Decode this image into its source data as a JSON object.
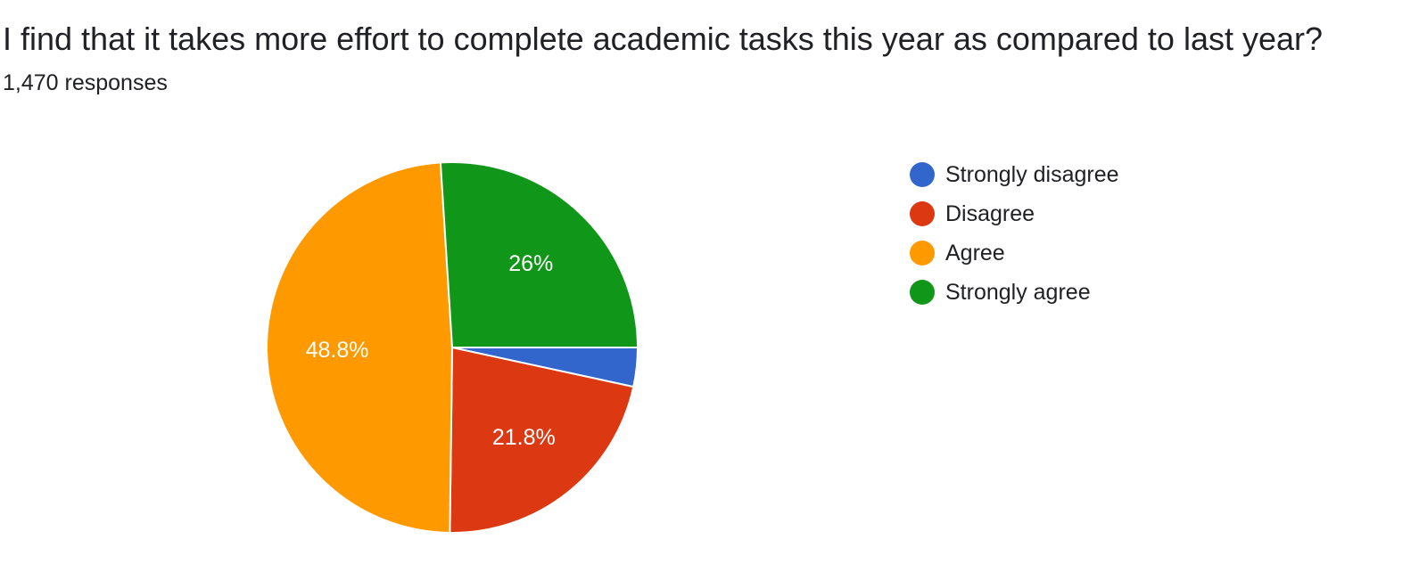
{
  "title": "I find that it takes more effort to complete academic tasks this year as compared to last year?",
  "subtitle": "1,470 responses",
  "chart_data": {
    "type": "pie",
    "title": "I find that it takes more effort to complete academic tasks this year as compared to last year?",
    "subtitle": "1,470 responses",
    "categories": [
      "Strongly disagree",
      "Disagree",
      "Agree",
      "Strongly agree"
    ],
    "values": [
      3.4,
      21.8,
      48.8,
      26
    ],
    "labels": [
      "",
      "21.8%",
      "48.8%",
      "26%"
    ],
    "colors": [
      "#3366cc",
      "#dc3912",
      "#ff9900",
      "#109618"
    ],
    "legend_position": "right"
  }
}
